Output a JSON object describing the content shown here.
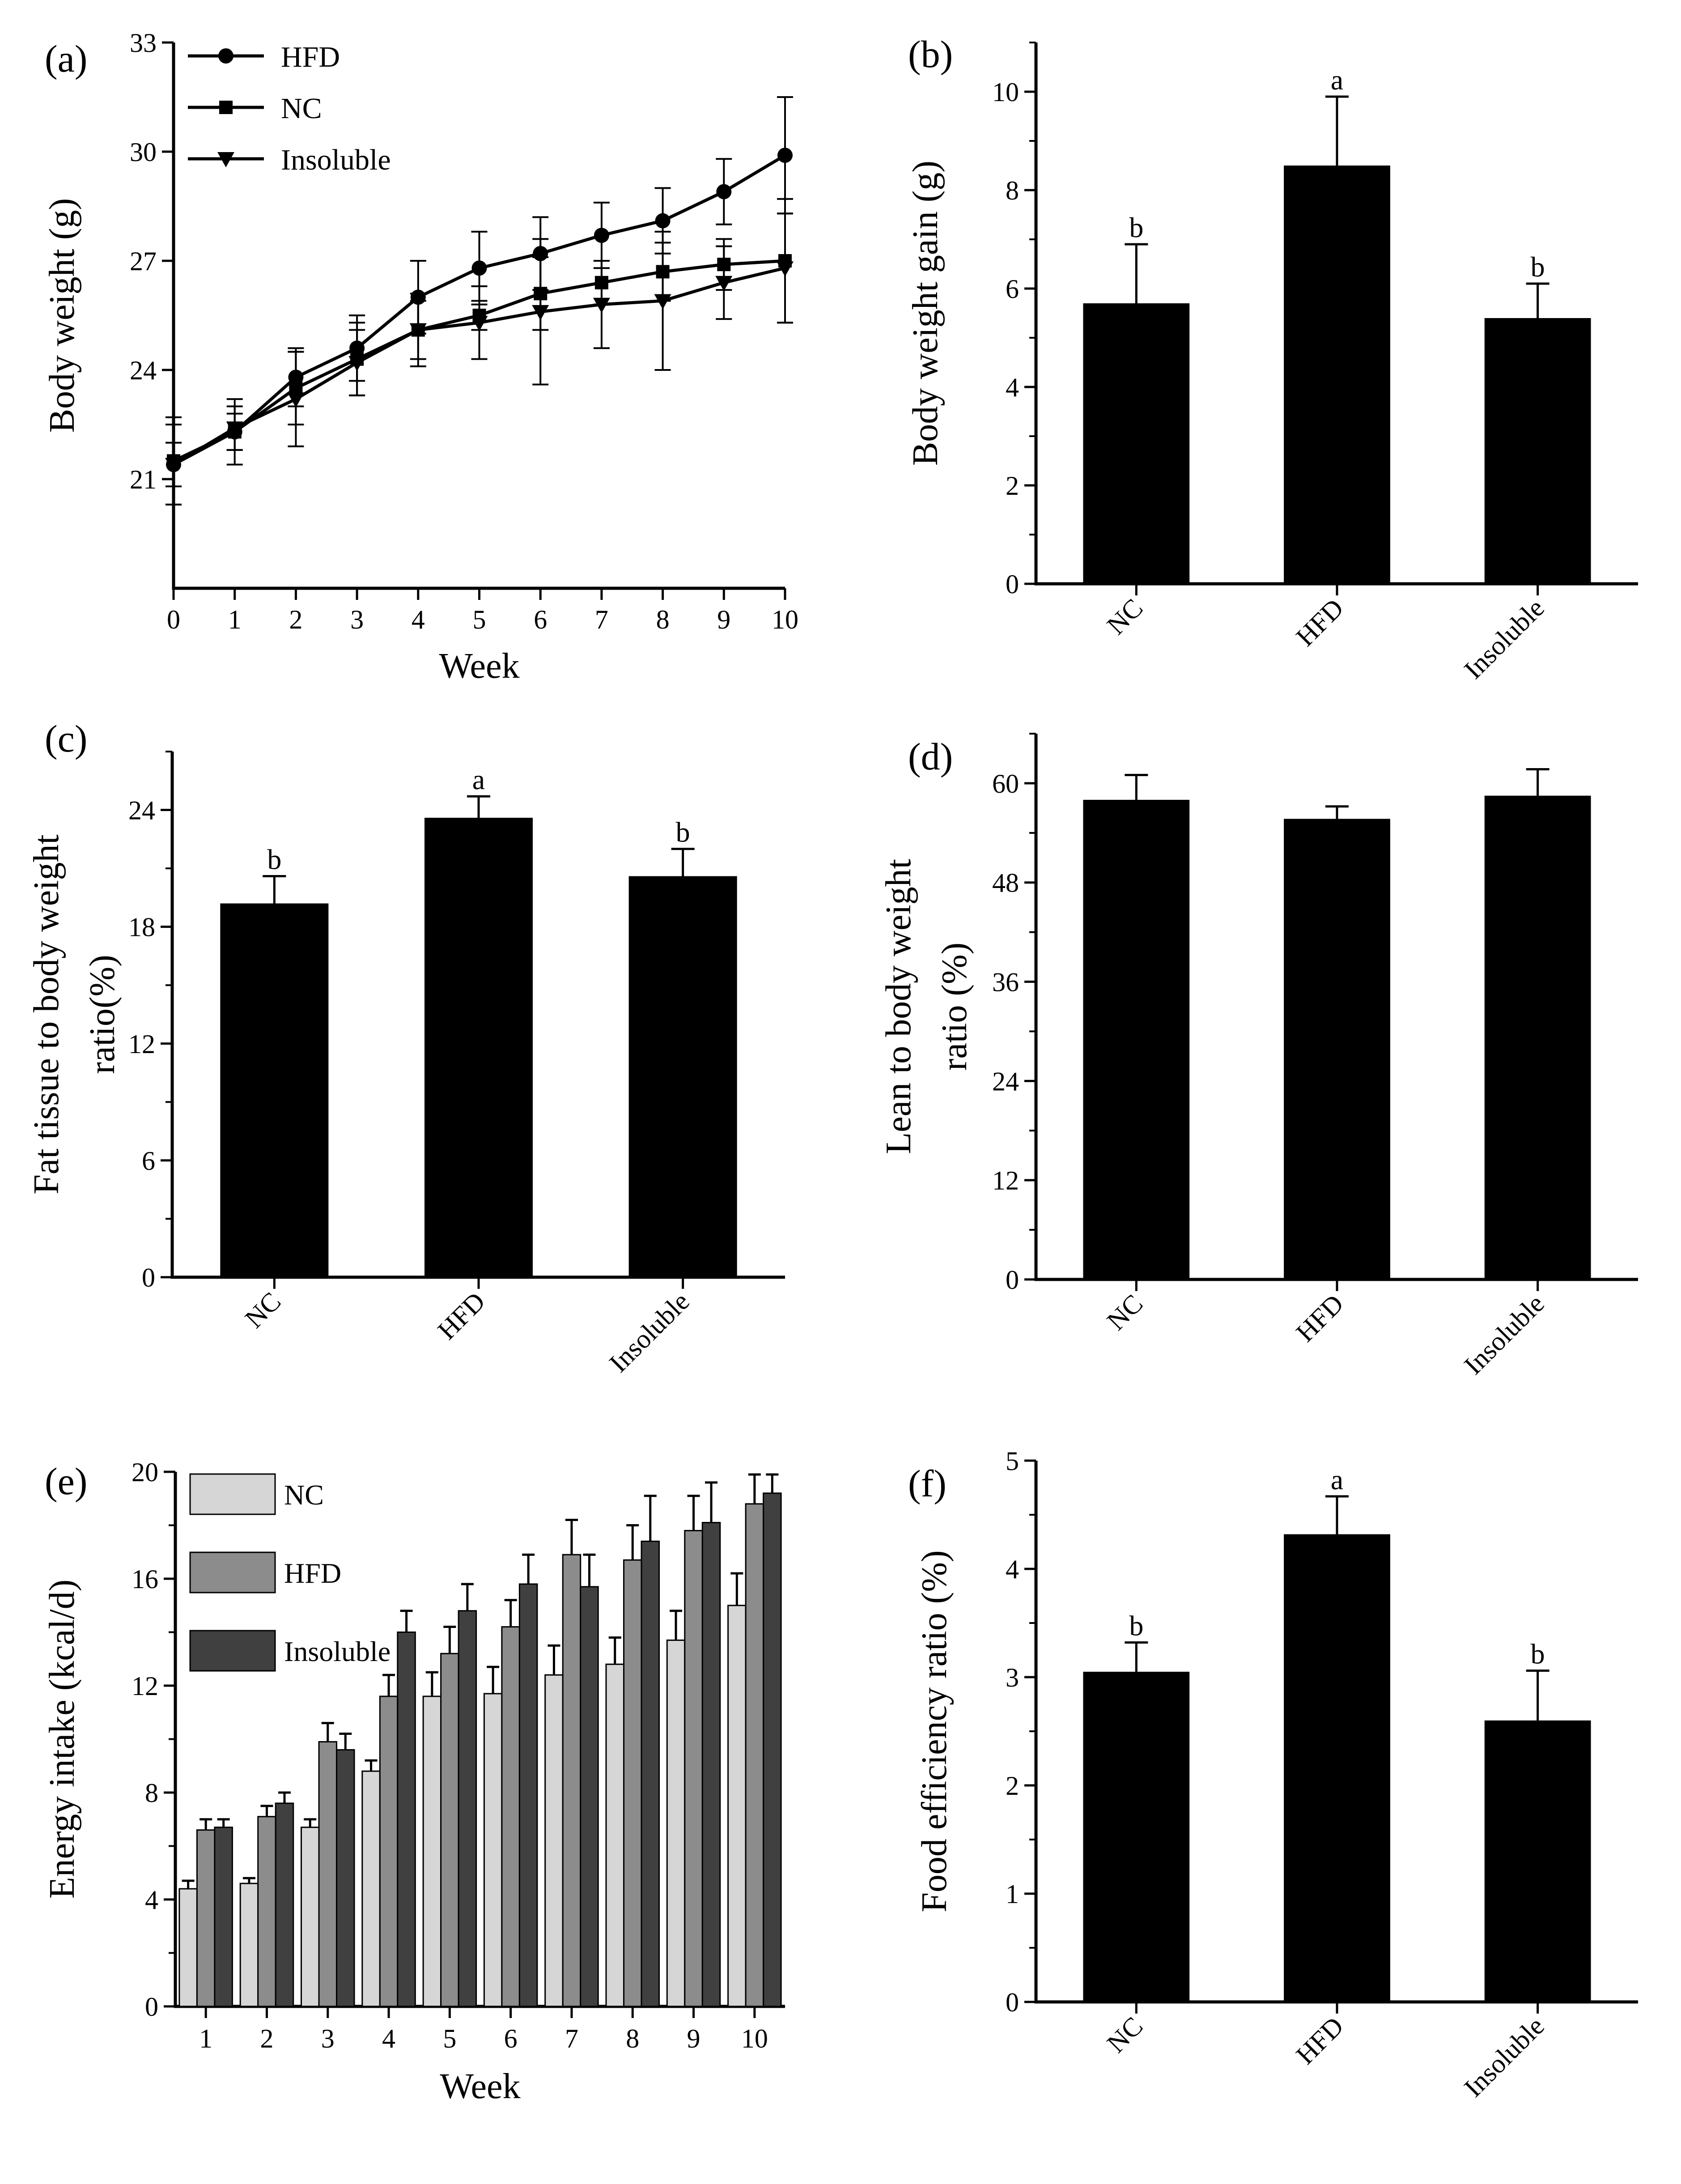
{
  "chart_data": [
    {
      "id": "a",
      "panel_label": "(a)",
      "type": "line",
      "xlabel": "Week",
      "ylabel": "Body weight (g)",
      "x": [
        0,
        1,
        2,
        3,
        4,
        5,
        6,
        7,
        8,
        9,
        10
      ],
      "xlim": [
        0,
        10
      ],
      "ylim": [
        18,
        33
      ],
      "xticks": [
        0,
        1,
        2,
        3,
        4,
        5,
        6,
        7,
        8,
        9,
        10
      ],
      "yticks": [
        21,
        24,
        27,
        30,
        33
      ],
      "legend_loc": "top-left",
      "series": [
        {
          "name": "HFD",
          "marker": "circle",
          "values": [
            21.4,
            22.3,
            23.8,
            24.6,
            26.0,
            26.8,
            27.2,
            27.7,
            28.1,
            28.9,
            29.9
          ],
          "errors": [
            0.6,
            0.9,
            0.8,
            0.9,
            1.0,
            1.0,
            1.0,
            0.9,
            0.9,
            0.9,
            1.6
          ]
        },
        {
          "name": "NC",
          "marker": "square",
          "values": [
            21.5,
            22.3,
            23.5,
            24.3,
            25.1,
            25.5,
            26.1,
            26.4,
            26.7,
            26.9,
            27.0
          ],
          "errors": [
            1.2,
            0.5,
            1.0,
            1.0,
            1.0,
            0.4,
            1.0,
            0.6,
            0.8,
            0.7,
            1.7
          ]
        },
        {
          "name": "Insoluble",
          "marker": "triangle-down",
          "values": [
            21.4,
            22.4,
            23.2,
            24.2,
            25.1,
            25.3,
            25.6,
            25.8,
            25.9,
            26.4,
            26.8
          ],
          "errors": [
            1.1,
            0.6,
            1.3,
            0.9,
            0.8,
            1.0,
            2.0,
            1.2,
            1.9,
            1.0,
            1.5
          ]
        }
      ]
    },
    {
      "id": "b",
      "panel_label": "(b)",
      "type": "bar",
      "ylabel": "Body weight gain (g)",
      "categories": [
        "NC",
        "HFD",
        "Insoluble"
      ],
      "values": [
        5.7,
        8.5,
        5.4
      ],
      "errors": [
        1.2,
        1.4,
        0.7
      ],
      "significance": [
        "b",
        "a",
        "b"
      ],
      "ylim": [
        0,
        11
      ],
      "yticks": [
        0,
        2,
        4,
        6,
        8,
        10
      ],
      "yminor": 1
    },
    {
      "id": "c",
      "panel_label": "(c)",
      "type": "bar",
      "ylabel": [
        "Fat tissue to body weight",
        "ratio(%)"
      ],
      "categories": [
        "NC",
        "HFD",
        "Insoluble"
      ],
      "values": [
        19.2,
        23.6,
        20.6
      ],
      "errors": [
        1.4,
        1.1,
        1.4
      ],
      "significance": [
        "b",
        "a",
        "b"
      ],
      "ylim": [
        0,
        27
      ],
      "yticks": [
        0,
        6,
        12,
        18,
        24
      ],
      "yminor": 3
    },
    {
      "id": "d",
      "panel_label": "(d)",
      "type": "bar",
      "ylabel": [
        "Lean to body weight",
        "ratio  (%)"
      ],
      "categories": [
        "NC",
        "HFD",
        "Insoluble"
      ],
      "values": [
        58.0,
        55.7,
        58.5
      ],
      "errors": [
        3.0,
        1.5,
        3.2
      ],
      "significance": [
        "",
        "",
        ""
      ],
      "ylim": [
        0,
        66
      ],
      "yticks": [
        0,
        12,
        24,
        36,
        48,
        60
      ],
      "yminor": 6
    },
    {
      "id": "e",
      "panel_label": "(e)",
      "type": "bar",
      "xlabel": "Week",
      "ylabel": "Energy intake (kcal/d)",
      "categories": [
        "1",
        "2",
        "3",
        "4",
        "5",
        "6",
        "7",
        "8",
        "9",
        "10"
      ],
      "ylim": [
        0,
        20
      ],
      "yticks": [
        0,
        4,
        8,
        12,
        16,
        20
      ],
      "yminor": 2,
      "legend_loc": "top-left",
      "series": [
        {
          "name": "NC",
          "color": "#d6d6d6",
          "values": [
            4.4,
            4.6,
            6.7,
            8.8,
            11.6,
            11.7,
            12.4,
            12.8,
            13.7,
            15.0
          ],
          "errors": [
            0.3,
            0.2,
            0.3,
            0.4,
            0.9,
            1.0,
            1.1,
            1.0,
            1.1,
            1.2
          ]
        },
        {
          "name": "HFD",
          "color": "#8c8c8c",
          "values": [
            6.6,
            7.1,
            9.9,
            11.6,
            13.2,
            14.2,
            16.9,
            16.7,
            17.8,
            18.8
          ],
          "errors": [
            0.4,
            0.4,
            0.7,
            0.8,
            1.0,
            1.0,
            1.3,
            1.3,
            1.3,
            1.1
          ]
        },
        {
          "name": "Insoluble",
          "color": "#404040",
          "values": [
            6.7,
            7.6,
            9.6,
            14.0,
            14.8,
            15.8,
            15.7,
            17.4,
            18.1,
            19.2
          ],
          "errors": [
            0.3,
            0.4,
            0.6,
            0.8,
            1.0,
            1.1,
            1.2,
            1.7,
            1.5,
            0.7
          ]
        }
      ]
    },
    {
      "id": "f",
      "panel_label": "(f)",
      "type": "bar",
      "ylabel": "Food efficiency ratio (%)",
      "categories": [
        "NC",
        "HFD",
        "Insoluble"
      ],
      "values": [
        3.05,
        4.32,
        2.6
      ],
      "errors": [
        0.27,
        0.35,
        0.46
      ],
      "significance": [
        "b",
        "a",
        "b"
      ],
      "ylim": [
        0,
        5
      ],
      "yticks": [
        0,
        1,
        2,
        3,
        4,
        5
      ],
      "yminor": 0.5
    }
  ]
}
